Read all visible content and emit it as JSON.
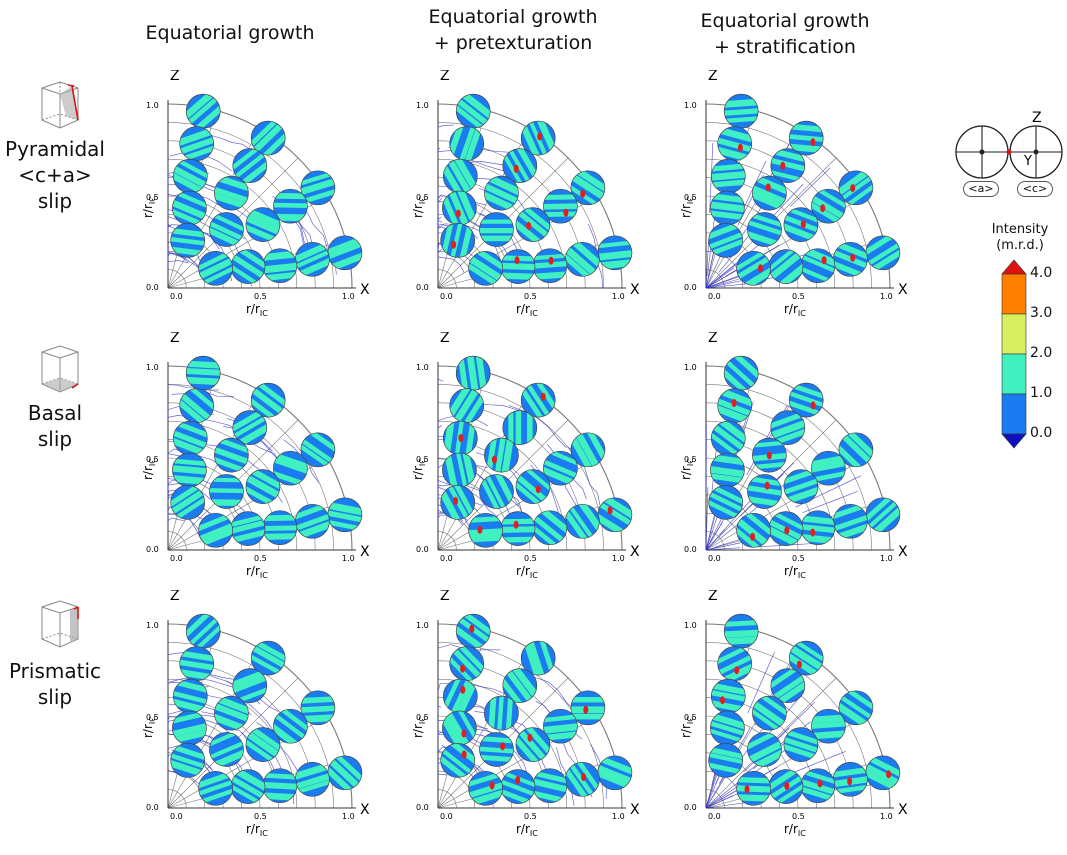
{
  "columns": [
    {
      "title_line1": "Equatorial growth",
      "title_line2": ""
    },
    {
      "title_line1": "Equatorial growth",
      "title_line2": "+ pretexturation"
    },
    {
      "title_line1": "Equatorial growth",
      "title_line2": "+ stratification"
    }
  ],
  "rows": [
    {
      "label_line1": "Pyramidal",
      "label_line2": "<c+a>",
      "label_line3": "slip"
    },
    {
      "label_line1": "Basal",
      "label_line2": "slip",
      "label_line3": ""
    },
    {
      "label_line1": "Prismatic",
      "label_line2": "slip",
      "label_line3": ""
    }
  ],
  "axes": {
    "z_label": "Z",
    "x_label": "X",
    "tick_0": "0.0",
    "tick_half": "0.5",
    "tick_1": "1.0",
    "xlabel": "r/r",
    "xlabel_sub": "IC",
    "ylabel": "r/r",
    "ylabel_sub": "IC"
  },
  "pole_figure_key": {
    "z": "Z",
    "y": "Y",
    "a_label": "<a>",
    "c_label": "<c>"
  },
  "legend": {
    "title_line1": "Intensity",
    "title_line2": "(m.r.d.)",
    "ticks": [
      "4.0",
      "3.0",
      "2.0",
      "1.0",
      "0.0"
    ],
    "tick_values": [
      4.0,
      3.0,
      2.0,
      1.0,
      0.0
    ],
    "colors": [
      "#ff8000",
      "#d8f060",
      "#40f0c0",
      "#1a7cf0"
    ],
    "over_color": "#e01010",
    "under_color": "#1010c0"
  },
  "colors": {
    "flow_lines": "#3030c8",
    "grid_lines": "#777777",
    "pf_base": "#1a7cf0",
    "pf_mid": "#40f0c0",
    "pf_high": "#e02020"
  }
}
